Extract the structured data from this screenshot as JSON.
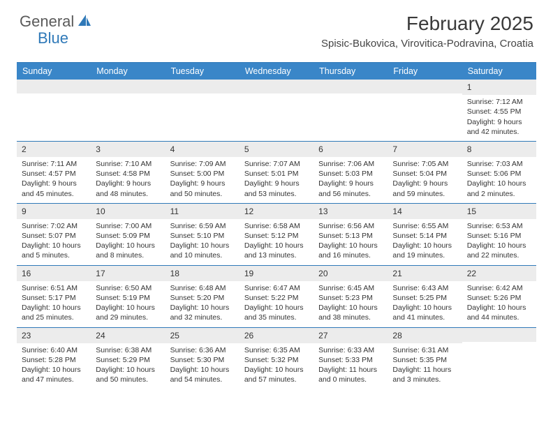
{
  "logo": {
    "general": "General",
    "blue": "Blue"
  },
  "title": "February 2025",
  "location": "Spisic-Bukovica, Virovitica-Podravina, Croatia",
  "colors": {
    "header_bg": "#3a86c8",
    "border": "#2f79b8",
    "daynum_bg": "#ececec",
    "text": "#333333",
    "logo_gray": "#5a5a5a",
    "logo_blue": "#2f79b8"
  },
  "day_headers": [
    "Sunday",
    "Monday",
    "Tuesday",
    "Wednesday",
    "Thursday",
    "Friday",
    "Saturday"
  ],
  "weeks": [
    [
      {
        "n": "",
        "sunrise": "",
        "sunset": "",
        "daylight1": "",
        "daylight2": ""
      },
      {
        "n": "",
        "sunrise": "",
        "sunset": "",
        "daylight1": "",
        "daylight2": ""
      },
      {
        "n": "",
        "sunrise": "",
        "sunset": "",
        "daylight1": "",
        "daylight2": ""
      },
      {
        "n": "",
        "sunrise": "",
        "sunset": "",
        "daylight1": "",
        "daylight2": ""
      },
      {
        "n": "",
        "sunrise": "",
        "sunset": "",
        "daylight1": "",
        "daylight2": ""
      },
      {
        "n": "",
        "sunrise": "",
        "sunset": "",
        "daylight1": "",
        "daylight2": ""
      },
      {
        "n": "1",
        "sunrise": "Sunrise: 7:12 AM",
        "sunset": "Sunset: 4:55 PM",
        "daylight1": "Daylight: 9 hours",
        "daylight2": "and 42 minutes."
      }
    ],
    [
      {
        "n": "2",
        "sunrise": "Sunrise: 7:11 AM",
        "sunset": "Sunset: 4:57 PM",
        "daylight1": "Daylight: 9 hours",
        "daylight2": "and 45 minutes."
      },
      {
        "n": "3",
        "sunrise": "Sunrise: 7:10 AM",
        "sunset": "Sunset: 4:58 PM",
        "daylight1": "Daylight: 9 hours",
        "daylight2": "and 48 minutes."
      },
      {
        "n": "4",
        "sunrise": "Sunrise: 7:09 AM",
        "sunset": "Sunset: 5:00 PM",
        "daylight1": "Daylight: 9 hours",
        "daylight2": "and 50 minutes."
      },
      {
        "n": "5",
        "sunrise": "Sunrise: 7:07 AM",
        "sunset": "Sunset: 5:01 PM",
        "daylight1": "Daylight: 9 hours",
        "daylight2": "and 53 minutes."
      },
      {
        "n": "6",
        "sunrise": "Sunrise: 7:06 AM",
        "sunset": "Sunset: 5:03 PM",
        "daylight1": "Daylight: 9 hours",
        "daylight2": "and 56 minutes."
      },
      {
        "n": "7",
        "sunrise": "Sunrise: 7:05 AM",
        "sunset": "Sunset: 5:04 PM",
        "daylight1": "Daylight: 9 hours",
        "daylight2": "and 59 minutes."
      },
      {
        "n": "8",
        "sunrise": "Sunrise: 7:03 AM",
        "sunset": "Sunset: 5:06 PM",
        "daylight1": "Daylight: 10 hours",
        "daylight2": "and 2 minutes."
      }
    ],
    [
      {
        "n": "9",
        "sunrise": "Sunrise: 7:02 AM",
        "sunset": "Sunset: 5:07 PM",
        "daylight1": "Daylight: 10 hours",
        "daylight2": "and 5 minutes."
      },
      {
        "n": "10",
        "sunrise": "Sunrise: 7:00 AM",
        "sunset": "Sunset: 5:09 PM",
        "daylight1": "Daylight: 10 hours",
        "daylight2": "and 8 minutes."
      },
      {
        "n": "11",
        "sunrise": "Sunrise: 6:59 AM",
        "sunset": "Sunset: 5:10 PM",
        "daylight1": "Daylight: 10 hours",
        "daylight2": "and 10 minutes."
      },
      {
        "n": "12",
        "sunrise": "Sunrise: 6:58 AM",
        "sunset": "Sunset: 5:12 PM",
        "daylight1": "Daylight: 10 hours",
        "daylight2": "and 13 minutes."
      },
      {
        "n": "13",
        "sunrise": "Sunrise: 6:56 AM",
        "sunset": "Sunset: 5:13 PM",
        "daylight1": "Daylight: 10 hours",
        "daylight2": "and 16 minutes."
      },
      {
        "n": "14",
        "sunrise": "Sunrise: 6:55 AM",
        "sunset": "Sunset: 5:14 PM",
        "daylight1": "Daylight: 10 hours",
        "daylight2": "and 19 minutes."
      },
      {
        "n": "15",
        "sunrise": "Sunrise: 6:53 AM",
        "sunset": "Sunset: 5:16 PM",
        "daylight1": "Daylight: 10 hours",
        "daylight2": "and 22 minutes."
      }
    ],
    [
      {
        "n": "16",
        "sunrise": "Sunrise: 6:51 AM",
        "sunset": "Sunset: 5:17 PM",
        "daylight1": "Daylight: 10 hours",
        "daylight2": "and 25 minutes."
      },
      {
        "n": "17",
        "sunrise": "Sunrise: 6:50 AM",
        "sunset": "Sunset: 5:19 PM",
        "daylight1": "Daylight: 10 hours",
        "daylight2": "and 29 minutes."
      },
      {
        "n": "18",
        "sunrise": "Sunrise: 6:48 AM",
        "sunset": "Sunset: 5:20 PM",
        "daylight1": "Daylight: 10 hours",
        "daylight2": "and 32 minutes."
      },
      {
        "n": "19",
        "sunrise": "Sunrise: 6:47 AM",
        "sunset": "Sunset: 5:22 PM",
        "daylight1": "Daylight: 10 hours",
        "daylight2": "and 35 minutes."
      },
      {
        "n": "20",
        "sunrise": "Sunrise: 6:45 AM",
        "sunset": "Sunset: 5:23 PM",
        "daylight1": "Daylight: 10 hours",
        "daylight2": "and 38 minutes."
      },
      {
        "n": "21",
        "sunrise": "Sunrise: 6:43 AM",
        "sunset": "Sunset: 5:25 PM",
        "daylight1": "Daylight: 10 hours",
        "daylight2": "and 41 minutes."
      },
      {
        "n": "22",
        "sunrise": "Sunrise: 6:42 AM",
        "sunset": "Sunset: 5:26 PM",
        "daylight1": "Daylight: 10 hours",
        "daylight2": "and 44 minutes."
      }
    ],
    [
      {
        "n": "23",
        "sunrise": "Sunrise: 6:40 AM",
        "sunset": "Sunset: 5:28 PM",
        "daylight1": "Daylight: 10 hours",
        "daylight2": "and 47 minutes."
      },
      {
        "n": "24",
        "sunrise": "Sunrise: 6:38 AM",
        "sunset": "Sunset: 5:29 PM",
        "daylight1": "Daylight: 10 hours",
        "daylight2": "and 50 minutes."
      },
      {
        "n": "25",
        "sunrise": "Sunrise: 6:36 AM",
        "sunset": "Sunset: 5:30 PM",
        "daylight1": "Daylight: 10 hours",
        "daylight2": "and 54 minutes."
      },
      {
        "n": "26",
        "sunrise": "Sunrise: 6:35 AM",
        "sunset": "Sunset: 5:32 PM",
        "daylight1": "Daylight: 10 hours",
        "daylight2": "and 57 minutes."
      },
      {
        "n": "27",
        "sunrise": "Sunrise: 6:33 AM",
        "sunset": "Sunset: 5:33 PM",
        "daylight1": "Daylight: 11 hours",
        "daylight2": "and 0 minutes."
      },
      {
        "n": "28",
        "sunrise": "Sunrise: 6:31 AM",
        "sunset": "Sunset: 5:35 PM",
        "daylight1": "Daylight: 11 hours",
        "daylight2": "and 3 minutes."
      },
      {
        "n": "",
        "sunrise": "",
        "sunset": "",
        "daylight1": "",
        "daylight2": ""
      }
    ]
  ]
}
